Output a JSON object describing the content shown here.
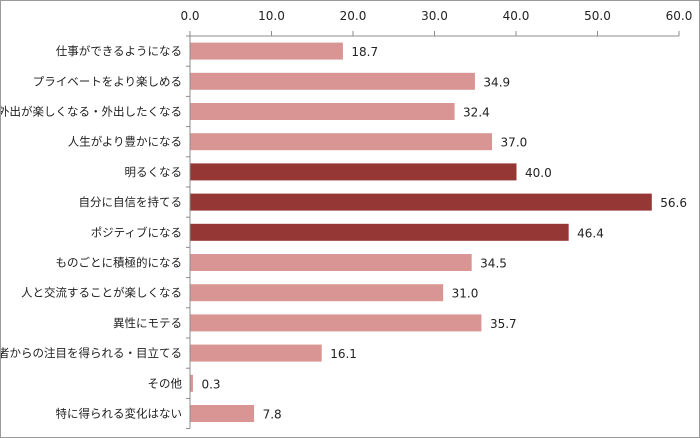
{
  "chart_data": {
    "type": "bar",
    "orientation": "horizontal",
    "title": "",
    "xlabel": "",
    "ylabel": "",
    "xlim": [
      0,
      60
    ],
    "x_ticks": [
      "0.0",
      "10.0",
      "20.0",
      "30.0",
      "40.0",
      "50.0",
      "60.0"
    ],
    "x_axis_position": "top",
    "grid": false,
    "categories": [
      "仕事ができるようになる",
      "プライベートをより楽しめる",
      "外出が楽しくなる・外出したくなる",
      "人生がより豊かになる",
      "明るくなる",
      "自分に自信を持てる",
      "ポジティブになる",
      "ものごとに積極的になる",
      "人と交流することが楽しくなる",
      "異性にモテる",
      "他者からの注目を得られる・目立てる",
      "その他",
      "特に得られる変化はない"
    ],
    "values": [
      18.7,
      34.9,
      32.4,
      37.0,
      40.0,
      56.6,
      46.4,
      34.5,
      31.0,
      35.7,
      16.1,
      0.3,
      7.8
    ],
    "value_labels": [
      "18.7",
      "34.9",
      "32.4",
      "37.0",
      "40.0",
      "56.6",
      "46.4",
      "34.5",
      "31.0",
      "35.7",
      "16.1",
      "0.3",
      "7.8"
    ],
    "highlighted": [
      false,
      false,
      false,
      false,
      true,
      true,
      true,
      false,
      false,
      false,
      false,
      false,
      false
    ],
    "colors": {
      "bar": "#d99594",
      "bar_highlight": "#953735",
      "axis": "#8c8c8c",
      "text": "#222222",
      "border": "#9a9a9a"
    }
  }
}
